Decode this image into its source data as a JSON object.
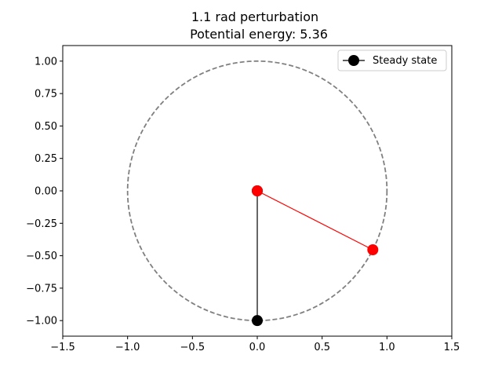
{
  "chart_data": {
    "type": "scatter",
    "title": "1.1 rad perturbation",
    "subtitle": "Potential energy: 5.36",
    "xlabel": "",
    "ylabel": "",
    "xlim": [
      -1.5,
      1.5
    ],
    "ylim": [
      -1.12,
      1.12
    ],
    "xticks": [
      "−1.5",
      "−1.0",
      "−0.5",
      "0.0",
      "0.5",
      "1.0",
      "1.5"
    ],
    "xtick_values": [
      -1.5,
      -1.0,
      -0.5,
      0.0,
      0.5,
      1.0,
      1.5
    ],
    "yticks": [
      "−1.00",
      "−0.75",
      "−0.50",
      "−0.25",
      "0.00",
      "0.25",
      "0.50",
      "0.75",
      "1.00"
    ],
    "ytick_values": [
      -1.0,
      -0.75,
      -0.5,
      -0.25,
      0.0,
      0.25,
      0.5,
      0.75,
      1.0
    ],
    "grid": false,
    "legend": {
      "placement": "top-right",
      "entries": [
        "Steady state"
      ]
    },
    "circle": {
      "center": [
        0,
        0
      ],
      "radius": 1.0,
      "color": "#808080",
      "style": "dashed"
    },
    "series": [
      {
        "name": "Steady state",
        "color": "#000000",
        "x": [
          0.0,
          0.0
        ],
        "y": [
          0.0,
          -1.0
        ]
      },
      {
        "color": "#ff0000",
        "x": [
          0.0,
          0.891
        ],
        "y": [
          0.0,
          -0.454
        ]
      }
    ]
  }
}
